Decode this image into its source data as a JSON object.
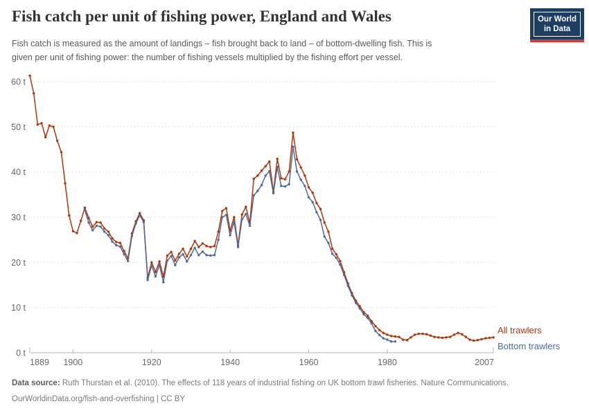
{
  "header": {
    "title": "Fish catch per unit of fishing power, England and Wales",
    "subtitle_line1": "Fish catch is measured as the amount of landings – fish brought back to land – of bottom-dwelling fish. This is",
    "subtitle_line2": "given per unit of fishing power: the number of fishing vessels multiplied by the fishing effort per vessel.",
    "logo": {
      "line1": "Our World",
      "line2": "in Data",
      "bg_color": "#1d3d63",
      "stripe_color": "#d73c32"
    }
  },
  "chart_data": {
    "type": "line",
    "title": "Fish catch per unit of fishing power, England and Wales",
    "xlabel": "",
    "ylabel": "",
    "y_unit": " t",
    "x_range": [
      1889,
      2007
    ],
    "y_range": [
      0,
      60
    ],
    "y_ticks": [
      0,
      10,
      20,
      30,
      40,
      50,
      60
    ],
    "x_ticks": [
      1889,
      1900,
      1920,
      1940,
      1960,
      1980,
      2007
    ],
    "grid": "horizontal-dashed",
    "legend_position": "right-end-labels",
    "colors": {
      "grid": "#e2e2e2",
      "axis": "#b3b3b3",
      "label": "#666666"
    },
    "series": [
      {
        "name": "All trawlers",
        "color": "#b13507",
        "start_year": 1889,
        "values": [
          61.3,
          57.4,
          50.5,
          50.8,
          47.7,
          50.3,
          50.0,
          46.9,
          44.4,
          37.5,
          30.4,
          26.9,
          26.5,
          29.2,
          32.1,
          29.8,
          27.9,
          28.9,
          28.8,
          27.5,
          26.8,
          25.3,
          24.5,
          24.3,
          22.5,
          20.9,
          26.4,
          29.1,
          30.9,
          29.3,
          16.6,
          20.0,
          17.9,
          20.2,
          16.8,
          21.5,
          22.3,
          20.4,
          21.9,
          23.0,
          21.3,
          23.0,
          24.7,
          23.4,
          24.2,
          23.6,
          23.4,
          23.6,
          26.8,
          31.4,
          32.0,
          27.0,
          30.0,
          23.8,
          30.6,
          32.3,
          28.7,
          38.5,
          39.2,
          40.3,
          41.3,
          42.3,
          35.6,
          42.9,
          38.6,
          38.4,
          40.1,
          48.7,
          42.8,
          41.0,
          39.2,
          36.6,
          35.4,
          33.1,
          31.8,
          28.8,
          26.8,
          23.0,
          21.8,
          20.3,
          17.8,
          15.3,
          13.2,
          11.5,
          10.3,
          9.0,
          8.2,
          7.0,
          5.9,
          5.0,
          4.4,
          4.0,
          3.7,
          3.6,
          3.5,
          2.9,
          2.8,
          3.4,
          4.0,
          4.2,
          4.2,
          4.1,
          3.8,
          3.5,
          3.4,
          3.3,
          3.4,
          3.5,
          4.0,
          4.4,
          4.1,
          3.5,
          2.9,
          2.7,
          2.8,
          3.0,
          3.2,
          3.3,
          3.4
        ]
      },
      {
        "name": "Bottom trawlers",
        "color": "#4c6a9c",
        "start_year": 1903,
        "values": [
          31.6,
          28.8,
          27.1,
          28.1,
          27.9,
          26.8,
          26.0,
          24.6,
          23.8,
          23.5,
          21.8,
          20.3,
          25.8,
          28.6,
          30.4,
          28.9,
          16.1,
          19.3,
          16.9,
          19.4,
          15.6,
          20.4,
          21.4,
          19.4,
          21.1,
          21.8,
          20.2,
          21.6,
          23.2,
          21.6,
          22.4,
          21.6,
          21.5,
          21.6,
          25.0,
          30.0,
          30.5,
          26.0,
          29.0,
          23.4,
          29.5,
          30.7,
          28.1,
          34.8,
          35.8,
          37.1,
          39.2,
          40.2,
          35.3,
          41.1,
          36.9,
          36.8,
          37.3,
          45.6,
          40.1,
          38.3,
          36.9,
          34.4,
          33.3,
          31.1,
          29.4,
          25.7,
          24.3,
          21.9,
          21.0,
          19.5,
          17.2,
          14.8,
          12.7,
          11.0,
          9.8,
          8.5,
          7.7,
          6.5,
          4.8,
          3.9,
          3.2,
          2.9,
          2.5,
          2.5
        ]
      }
    ]
  },
  "footer": {
    "source_label": "Data source:",
    "source_text": "Ruth Thurstan et al. (2010). The effects of 118 years of industrial fishing on UK bottom trawl fisheries. Nature Communications.",
    "url": "OurWorldinData.org/fish-and-overfishing",
    "license": "| CC BY"
  }
}
